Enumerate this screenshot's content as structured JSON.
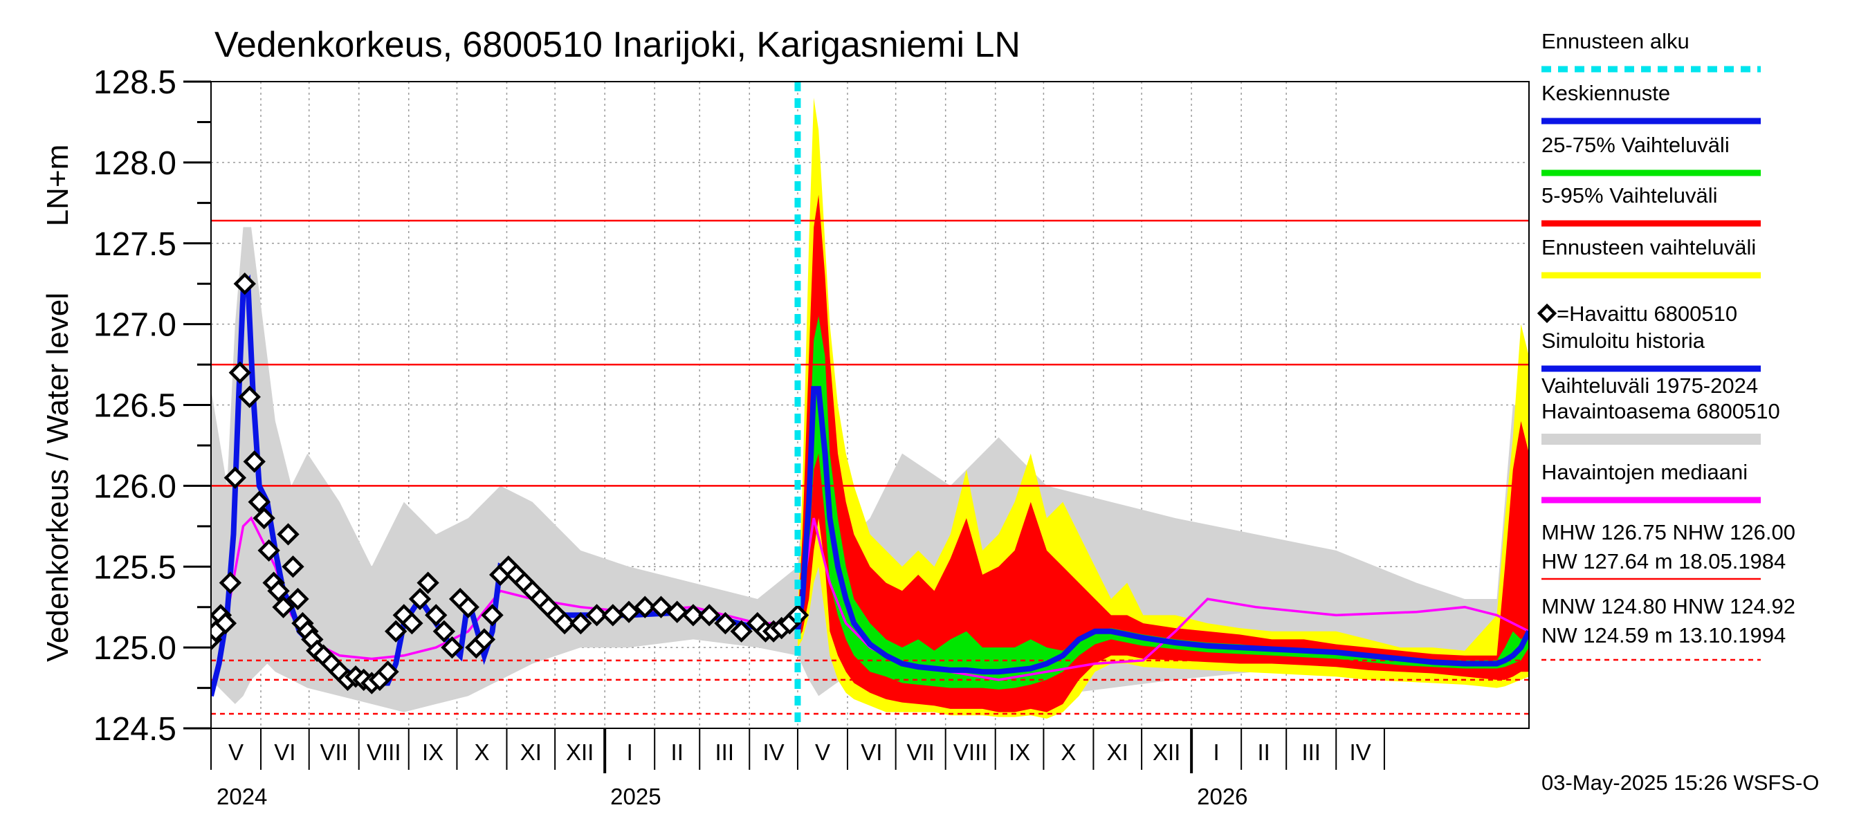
{
  "chart_data": {
    "type": "area",
    "title": "Vedenkorkeus, 6800510 Inarijoki, Karigasniemi LN",
    "ylabel": "Vedenkorkeus / Water level",
    "yunit": "LN+m",
    "ylim": [
      124.5,
      128.5
    ],
    "yticks": [
      "124.5",
      "125.0",
      "125.5",
      "126.0",
      "126.5",
      "127.0",
      "127.5",
      "128.0",
      "128.5"
    ],
    "grid": true,
    "legend_position": "right",
    "months": [
      "V",
      "VI",
      "VII",
      "VIII",
      "IX",
      "X",
      "XI",
      "XII",
      "I",
      "II",
      "III",
      "IV",
      "V",
      "VI",
      "VII",
      "VIII",
      "IX",
      "X",
      "XI",
      "XII",
      "I",
      "II",
      "III",
      "IV"
    ],
    "years": [
      "2024",
      "2025",
      "2026"
    ],
    "forecast_start": "2025-05-03",
    "reference_lines": {
      "solid": [
        126.0,
        126.75,
        127.64
      ],
      "dashed": [
        124.59,
        124.8,
        124.92
      ]
    },
    "legend": [
      {
        "label": "Ennusteen alku",
        "color": "#00e5ee",
        "style": "dashed"
      },
      {
        "label": "Keskiennuste",
        "color": "#0a14e6",
        "style": "solid"
      },
      {
        "label": "25-75% Vaihteluväli",
        "color": "#00e600",
        "style": "solid"
      },
      {
        "label": "5-95% Vaihteluväli",
        "color": "#ff0000",
        "style": "solid"
      },
      {
        "label": "Ennusteen vaihteluväli",
        "color": "#ffff00",
        "style": "solid"
      },
      {
        "label": "=Havaittu 6800510",
        "color": "#000000",
        "style": "marker"
      },
      {
        "label": "Simuloitu historia",
        "color": "#0a14e6",
        "style": "solid"
      },
      {
        "label": "Vaihteluväli 1975-2024\n Havaintoasema 6800510",
        "color": "#d3d3d3",
        "style": "solid"
      },
      {
        "label": "Havaintojen mediaani",
        "color": "#ff00ff",
        "style": "solid"
      }
    ],
    "stats": {
      "line1": "MHW 126.75 NHW 126.00",
      "line2": "HW 127.64 m 18.05.1984",
      "line3": "MNW 124.80 HNW 124.92",
      "line4": "NW 124.59 m 13.10.1994"
    },
    "footer": "03-May-2025 15:26 WSFS-O",
    "observed": {
      "x": [
        0,
        3,
        6,
        9,
        12,
        15,
        18,
        21,
        24,
        27,
        30,
        33,
        36,
        39,
        42,
        45,
        48,
        51,
        54,
        57,
        60,
        63,
        66,
        70,
        75,
        80,
        85,
        90,
        95,
        100,
        105,
        110,
        115,
        120,
        125,
        130,
        135,
        140,
        145,
        150,
        155,
        160,
        165,
        170,
        175,
        180,
        185,
        190,
        195,
        200,
        205,
        210,
        215,
        220,
        230,
        240,
        250,
        260,
        270,
        280,
        290,
        300,
        310,
        320,
        330,
        340,
        345,
        350,
        355,
        360,
        365
      ],
      "y": [
        125.05,
        125.1,
        125.2,
        125.15,
        125.4,
        126.05,
        126.7,
        127.25,
        126.55,
        126.15,
        125.9,
        125.8,
        125.6,
        125.4,
        125.35,
        125.25,
        125.7,
        125.5,
        125.3,
        125.15,
        125.1,
        125.05,
        124.98,
        124.95,
        124.9,
        124.85,
        124.8,
        124.82,
        124.8,
        124.78,
        124.8,
        124.85,
        125.1,
        125.2,
        125.15,
        125.3,
        125.4,
        125.2,
        125.1,
        125.0,
        125.3,
        125.25,
        125.0,
        125.05,
        125.2,
        125.45,
        125.5,
        125.45,
        125.4,
        125.35,
        125.3,
        125.25,
        125.2,
        125.15,
        125.15,
        125.2,
        125.2,
        125.22,
        125.25,
        125.25,
        125.22,
        125.2,
        125.2,
        125.15,
        125.1,
        125.15,
        125.1,
        125.1,
        125.12,
        125.15,
        125.2
      ]
    },
    "simulated": {
      "x": [
        0,
        5,
        10,
        14,
        17,
        20,
        23,
        26,
        30,
        35,
        40,
        45,
        50,
        55,
        60,
        65,
        70,
        80,
        90,
        100,
        110,
        115,
        120,
        130,
        140,
        150,
        155,
        160,
        170,
        175,
        180,
        190,
        200,
        220,
        260,
        300,
        340,
        365
      ],
      "y": [
        124.7,
        124.9,
        125.2,
        125.7,
        126.5,
        127.2,
        127.25,
        126.6,
        126.0,
        125.9,
        125.6,
        125.35,
        125.25,
        125.1,
        125.05,
        124.98,
        124.95,
        124.88,
        124.82,
        124.78,
        124.78,
        124.9,
        125.15,
        125.3,
        125.15,
        125.0,
        124.95,
        125.3,
        124.95,
        125.1,
        125.5,
        125.45,
        125.35,
        125.2,
        125.2,
        125.22,
        125.12,
        125.15
      ]
    },
    "hist_median": {
      "x": [
        0,
        10,
        20,
        25,
        30,
        40,
        50,
        60,
        80,
        100,
        120,
        140,
        160,
        180,
        200,
        230,
        260,
        300,
        340,
        365,
        375,
        385,
        395,
        410,
        430,
        460,
        490,
        520,
        550,
        580,
        600,
        620,
        650,
        700,
        750,
        780,
        800,
        820
      ],
      "y": [
        125.05,
        125.2,
        125.75,
        125.8,
        125.7,
        125.5,
        125.2,
        125.05,
        124.95,
        124.93,
        124.95,
        125.0,
        125.1,
        125.35,
        125.3,
        125.25,
        125.22,
        125.25,
        125.15,
        125.15,
        125.8,
        125.4,
        125.15,
        125.0,
        124.9,
        124.85,
        124.8,
        124.85,
        124.9,
        124.92,
        125.1,
        125.3,
        125.25,
        125.2,
        125.22,
        125.25,
        125.2,
        125.1
      ]
    },
    "hist_range": {
      "x": [
        0,
        10,
        15,
        20,
        25,
        30,
        35,
        40,
        50,
        60,
        80,
        100,
        120,
        140,
        160,
        180,
        200,
        230,
        260,
        300,
        340,
        365,
        372,
        378,
        385,
        392,
        400,
        410,
        430,
        460,
        490,
        520,
        560,
        600,
        650,
        700,
        750,
        780,
        800,
        810,
        820
      ],
      "high": [
        126.6,
        126.0,
        127.0,
        127.6,
        127.6,
        127.2,
        126.8,
        126.4,
        126.0,
        126.2,
        125.9,
        125.5,
        125.9,
        125.7,
        125.8,
        126.0,
        125.9,
        125.6,
        125.5,
        125.4,
        125.3,
        125.5,
        126.5,
        127.4,
        127.0,
        126.0,
        125.7,
        125.8,
        126.2,
        126.0,
        126.3,
        126.0,
        125.9,
        125.8,
        125.7,
        125.6,
        125.4,
        125.3,
        125.3,
        126.5,
        126.5
      ],
      "low": [
        124.8,
        124.7,
        124.65,
        124.7,
        124.8,
        124.85,
        124.9,
        124.85,
        124.8,
        124.75,
        124.7,
        124.65,
        124.6,
        124.65,
        124.7,
        124.8,
        124.9,
        125.0,
        125.0,
        125.05,
        125.0,
        124.95,
        124.8,
        124.7,
        124.75,
        124.8,
        124.75,
        124.7,
        124.65,
        124.6,
        124.65,
        124.7,
        124.75,
        124.8,
        124.85,
        124.9,
        124.9,
        124.85,
        124.8,
        124.85,
        124.9
      ]
    },
    "forecast": {
      "x": [
        365,
        368,
        372,
        375,
        378,
        382,
        385,
        390,
        395,
        400,
        410,
        420,
        430,
        440,
        450,
        460,
        470,
        480,
        490,
        500,
        510,
        520,
        530,
        540,
        550,
        560,
        570,
        580,
        600,
        620,
        640,
        660,
        680,
        700,
        720,
        740,
        760,
        780,
        800,
        805,
        810,
        815,
        820
      ],
      "ens_high": [
        125.2,
        126.0,
        127.5,
        128.4,
        128.2,
        127.5,
        127.0,
        126.5,
        126.2,
        126.0,
        125.7,
        125.6,
        125.5,
        125.6,
        125.5,
        125.7,
        126.1,
        125.6,
        125.7,
        125.9,
        126.2,
        125.8,
        125.9,
        125.7,
        125.5,
        125.3,
        125.4,
        125.2,
        125.2,
        125.15,
        125.12,
        125.1,
        125.1,
        125.1,
        125.05,
        125.0,
        125.0,
        124.98,
        125.2,
        125.8,
        126.3,
        127.0,
        126.8
      ],
      "p95": [
        125.15,
        125.7,
        126.8,
        127.6,
        127.8,
        127.3,
        126.8,
        126.2,
        125.9,
        125.7,
        125.5,
        125.4,
        125.35,
        125.45,
        125.35,
        125.55,
        125.8,
        125.45,
        125.5,
        125.6,
        125.9,
        125.6,
        125.5,
        125.4,
        125.3,
        125.2,
        125.2,
        125.15,
        125.12,
        125.1,
        125.08,
        125.05,
        125.05,
        125.02,
        125.0,
        124.98,
        124.96,
        124.95,
        124.95,
        125.5,
        126.1,
        126.4,
        126.2
      ],
      "p75": [
        125.12,
        125.4,
        126.2,
        126.9,
        127.05,
        126.8,
        126.2,
        125.8,
        125.5,
        125.3,
        125.15,
        125.05,
        125.0,
        125.05,
        124.98,
        125.05,
        125.1,
        125.0,
        125.0,
        125.0,
        125.05,
        125.0,
        124.98,
        125.05,
        125.1,
        125.12,
        125.1,
        125.08,
        125.05,
        125.03,
        125.02,
        125.0,
        124.99,
        124.98,
        124.96,
        124.94,
        124.92,
        124.92,
        124.92,
        125.0,
        125.1,
        125.05,
        125.1
      ],
      "median": [
        125.1,
        125.3,
        125.9,
        126.6,
        126.6,
        126.2,
        125.8,
        125.5,
        125.3,
        125.15,
        125.02,
        124.95,
        124.9,
        124.88,
        124.87,
        124.86,
        124.86,
        124.85,
        124.85,
        124.86,
        124.87,
        124.9,
        124.95,
        125.05,
        125.1,
        125.1,
        125.08,
        125.06,
        125.03,
        125.01,
        125.0,
        124.99,
        124.98,
        124.97,
        124.95,
        124.93,
        124.91,
        124.9,
        124.9,
        124.92,
        124.95,
        125.0,
        125.1
      ],
      "p25": [
        125.08,
        125.2,
        125.6,
        126.1,
        126.2,
        125.8,
        125.4,
        125.2,
        125.05,
        124.95,
        124.85,
        124.82,
        124.78,
        124.77,
        124.76,
        124.75,
        124.75,
        124.75,
        124.74,
        124.75,
        124.77,
        124.8,
        124.85,
        124.95,
        125.02,
        125.05,
        125.03,
        125.01,
        124.99,
        124.97,
        124.96,
        124.95,
        124.94,
        124.93,
        124.91,
        124.89,
        124.88,
        124.87,
        124.87,
        124.88,
        124.9,
        124.92,
        125.0
      ],
      "p5": [
        125.05,
        125.1,
        125.3,
        125.6,
        125.8,
        125.5,
        125.1,
        124.95,
        124.85,
        124.78,
        124.72,
        124.68,
        124.66,
        124.65,
        124.64,
        124.62,
        124.62,
        124.62,
        124.6,
        124.6,
        124.62,
        124.6,
        124.65,
        124.8,
        124.9,
        124.95,
        124.95,
        124.93,
        124.92,
        124.91,
        124.9,
        124.9,
        124.89,
        124.88,
        124.86,
        124.85,
        124.84,
        124.82,
        124.8,
        124.8,
        124.82,
        124.85,
        124.85
      ],
      "ens_low": [
        125.0,
        125.05,
        125.2,
        125.4,
        125.5,
        125.2,
        124.95,
        124.8,
        124.72,
        124.68,
        124.64,
        124.6,
        124.6,
        124.6,
        124.6,
        124.58,
        124.58,
        124.58,
        124.57,
        124.57,
        124.58,
        124.56,
        124.6,
        124.7,
        124.85,
        124.9,
        124.9,
        124.88,
        124.87,
        124.86,
        124.85,
        124.84,
        124.83,
        124.82,
        124.8,
        124.79,
        124.78,
        124.77,
        124.75,
        124.76,
        124.78,
        124.8,
        124.82
      ]
    }
  }
}
